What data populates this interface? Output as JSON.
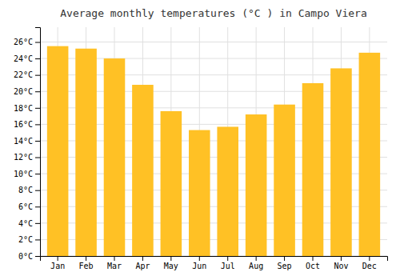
{
  "chart_data": {
    "type": "bar",
    "title": "Average monthly temperatures (°C ) in Campo Viera",
    "categories": [
      "Jan",
      "Feb",
      "Mar",
      "Apr",
      "May",
      "Jun",
      "Jul",
      "Aug",
      "Sep",
      "Oct",
      "Nov",
      "Dec"
    ],
    "values": [
      25.5,
      25.2,
      24.0,
      20.8,
      17.6,
      15.3,
      15.7,
      17.2,
      18.4,
      21.0,
      22.8,
      24.7
    ],
    "color": "#FFC125",
    "ylim": [
      0,
      27.8
    ],
    "yticks": [
      {
        "value": 0,
        "label": "0°C"
      },
      {
        "value": 2,
        "label": "2°C"
      },
      {
        "value": 4,
        "label": "4°C"
      },
      {
        "value": 6,
        "label": "6°C"
      },
      {
        "value": 8,
        "label": "8°C"
      },
      {
        "value": 10,
        "label": "10°C"
      },
      {
        "value": 12,
        "label": "12°C"
      },
      {
        "value": 14,
        "label": "14°C"
      },
      {
        "value": 16,
        "label": "16°C"
      },
      {
        "value": 18,
        "label": "18°C"
      },
      {
        "value": 20,
        "label": "20°C"
      },
      {
        "value": 22,
        "label": "22°C"
      },
      {
        "value": 24,
        "label": "24°C"
      },
      {
        "value": 26,
        "label": "26°C"
      }
    ],
    "grid": true
  }
}
